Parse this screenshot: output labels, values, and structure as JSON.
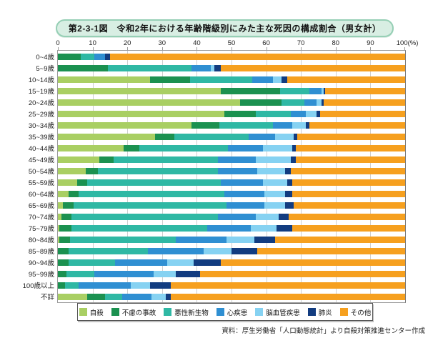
{
  "title": "第2-3-1図　令和2年における年齢階級別にみた主な死因の構成割合（男女計）",
  "footer": {
    "source": "資料：厚生労働省「人口動態統計」より自殺対策推進センター作成"
  },
  "chart_data": {
    "type": "bar",
    "variant": "horizontal-stacked-100pct",
    "grid": true,
    "legend_position": "bottom",
    "xlabel": "",
    "ylabel": "",
    "axis": {
      "min": 0,
      "max": 100,
      "tick_interval": 10,
      "unit_suffix": "(%)"
    },
    "tick_labels": [
      "0",
      "10",
      "20",
      "30",
      "40",
      "50",
      "60",
      "70",
      "80",
      "90",
      "100(%)"
    ],
    "series": [
      {
        "name": "自殺",
        "color": "#a9cf63"
      },
      {
        "name": "不慮の事故",
        "color": "#1b9150"
      },
      {
        "name": "悪性新生物",
        "color": "#2fb8a4"
      },
      {
        "name": "心疾患",
        "color": "#2f8fd2"
      },
      {
        "name": "脳血管疾患",
        "color": "#86d2f2"
      },
      {
        "name": "肺炎",
        "color": "#123c80"
      },
      {
        "name": "その他",
        "color": "#f6a01f"
      }
    ],
    "categories": [
      "0~4歳",
      "5~9歳",
      "10~14歳",
      "15~19歳",
      "20~24歳",
      "25~29歳",
      "30~34歳",
      "35~39歳",
      "40~44歳",
      "45~49歳",
      "50~54歳",
      "55~59歳",
      "60~64歳",
      "65~69歳",
      "70~74歳",
      "75~79歳",
      "80~84歳",
      "85~89歳",
      "90~94歳",
      "95~99歳",
      "100歳以上",
      "不詳"
    ],
    "values": [
      [
        0,
        6.5,
        4,
        3,
        0,
        1.5,
        85
      ],
      [
        0,
        14.5,
        24,
        5.5,
        1,
        2,
        53
      ],
      [
        26.5,
        11.5,
        18,
        6,
        2.5,
        1.5,
        34
      ],
      [
        47,
        17,
        8.5,
        3.5,
        0.5,
        0.5,
        23
      ],
      [
        52.5,
        12,
        6.5,
        3.5,
        1.5,
        0.5,
        23.5
      ],
      [
        48,
        9,
        10,
        4.5,
        3,
        1,
        24.5
      ],
      [
        38.5,
        8,
        15.5,
        5.5,
        4,
        1,
        27.5
      ],
      [
        28,
        5.5,
        21.5,
        7.5,
        5.5,
        1,
        31
      ],
      [
        19,
        4.5,
        25.5,
        10,
        8.5,
        1,
        31.5
      ],
      [
        12,
        4,
        30,
        11,
        10,
        1.5,
        31.5
      ],
      [
        8,
        3.5,
        34.5,
        11.5,
        8,
        1.5,
        33
      ],
      [
        5.5,
        3,
        38.5,
        12,
        7,
        1.5,
        32.5
      ],
      [
        3,
        3,
        42,
        11.5,
        6,
        2,
        32.5
      ],
      [
        1.5,
        3,
        44,
        11,
        6,
        2.5,
        32
      ],
      [
        1,
        3,
        42,
        11,
        6.5,
        3,
        33.5
      ],
      [
        0.5,
        3.5,
        39,
        12.5,
        7.5,
        4.5,
        32.5
      ],
      [
        0.5,
        3,
        30.5,
        14.5,
        8,
        6,
        37.5
      ],
      [
        0,
        3,
        23,
        16,
        8,
        7.5,
        42.5
      ],
      [
        0,
        3,
        13.5,
        15,
        7.5,
        8,
        53
      ],
      [
        0,
        2.5,
        8,
        17,
        6.5,
        7,
        59
      ],
      [
        0,
        2,
        4,
        15,
        5.5,
        6,
        67.5
      ],
      [
        8.5,
        5,
        5,
        8.5,
        4,
        1.5,
        67.5
      ]
    ]
  }
}
